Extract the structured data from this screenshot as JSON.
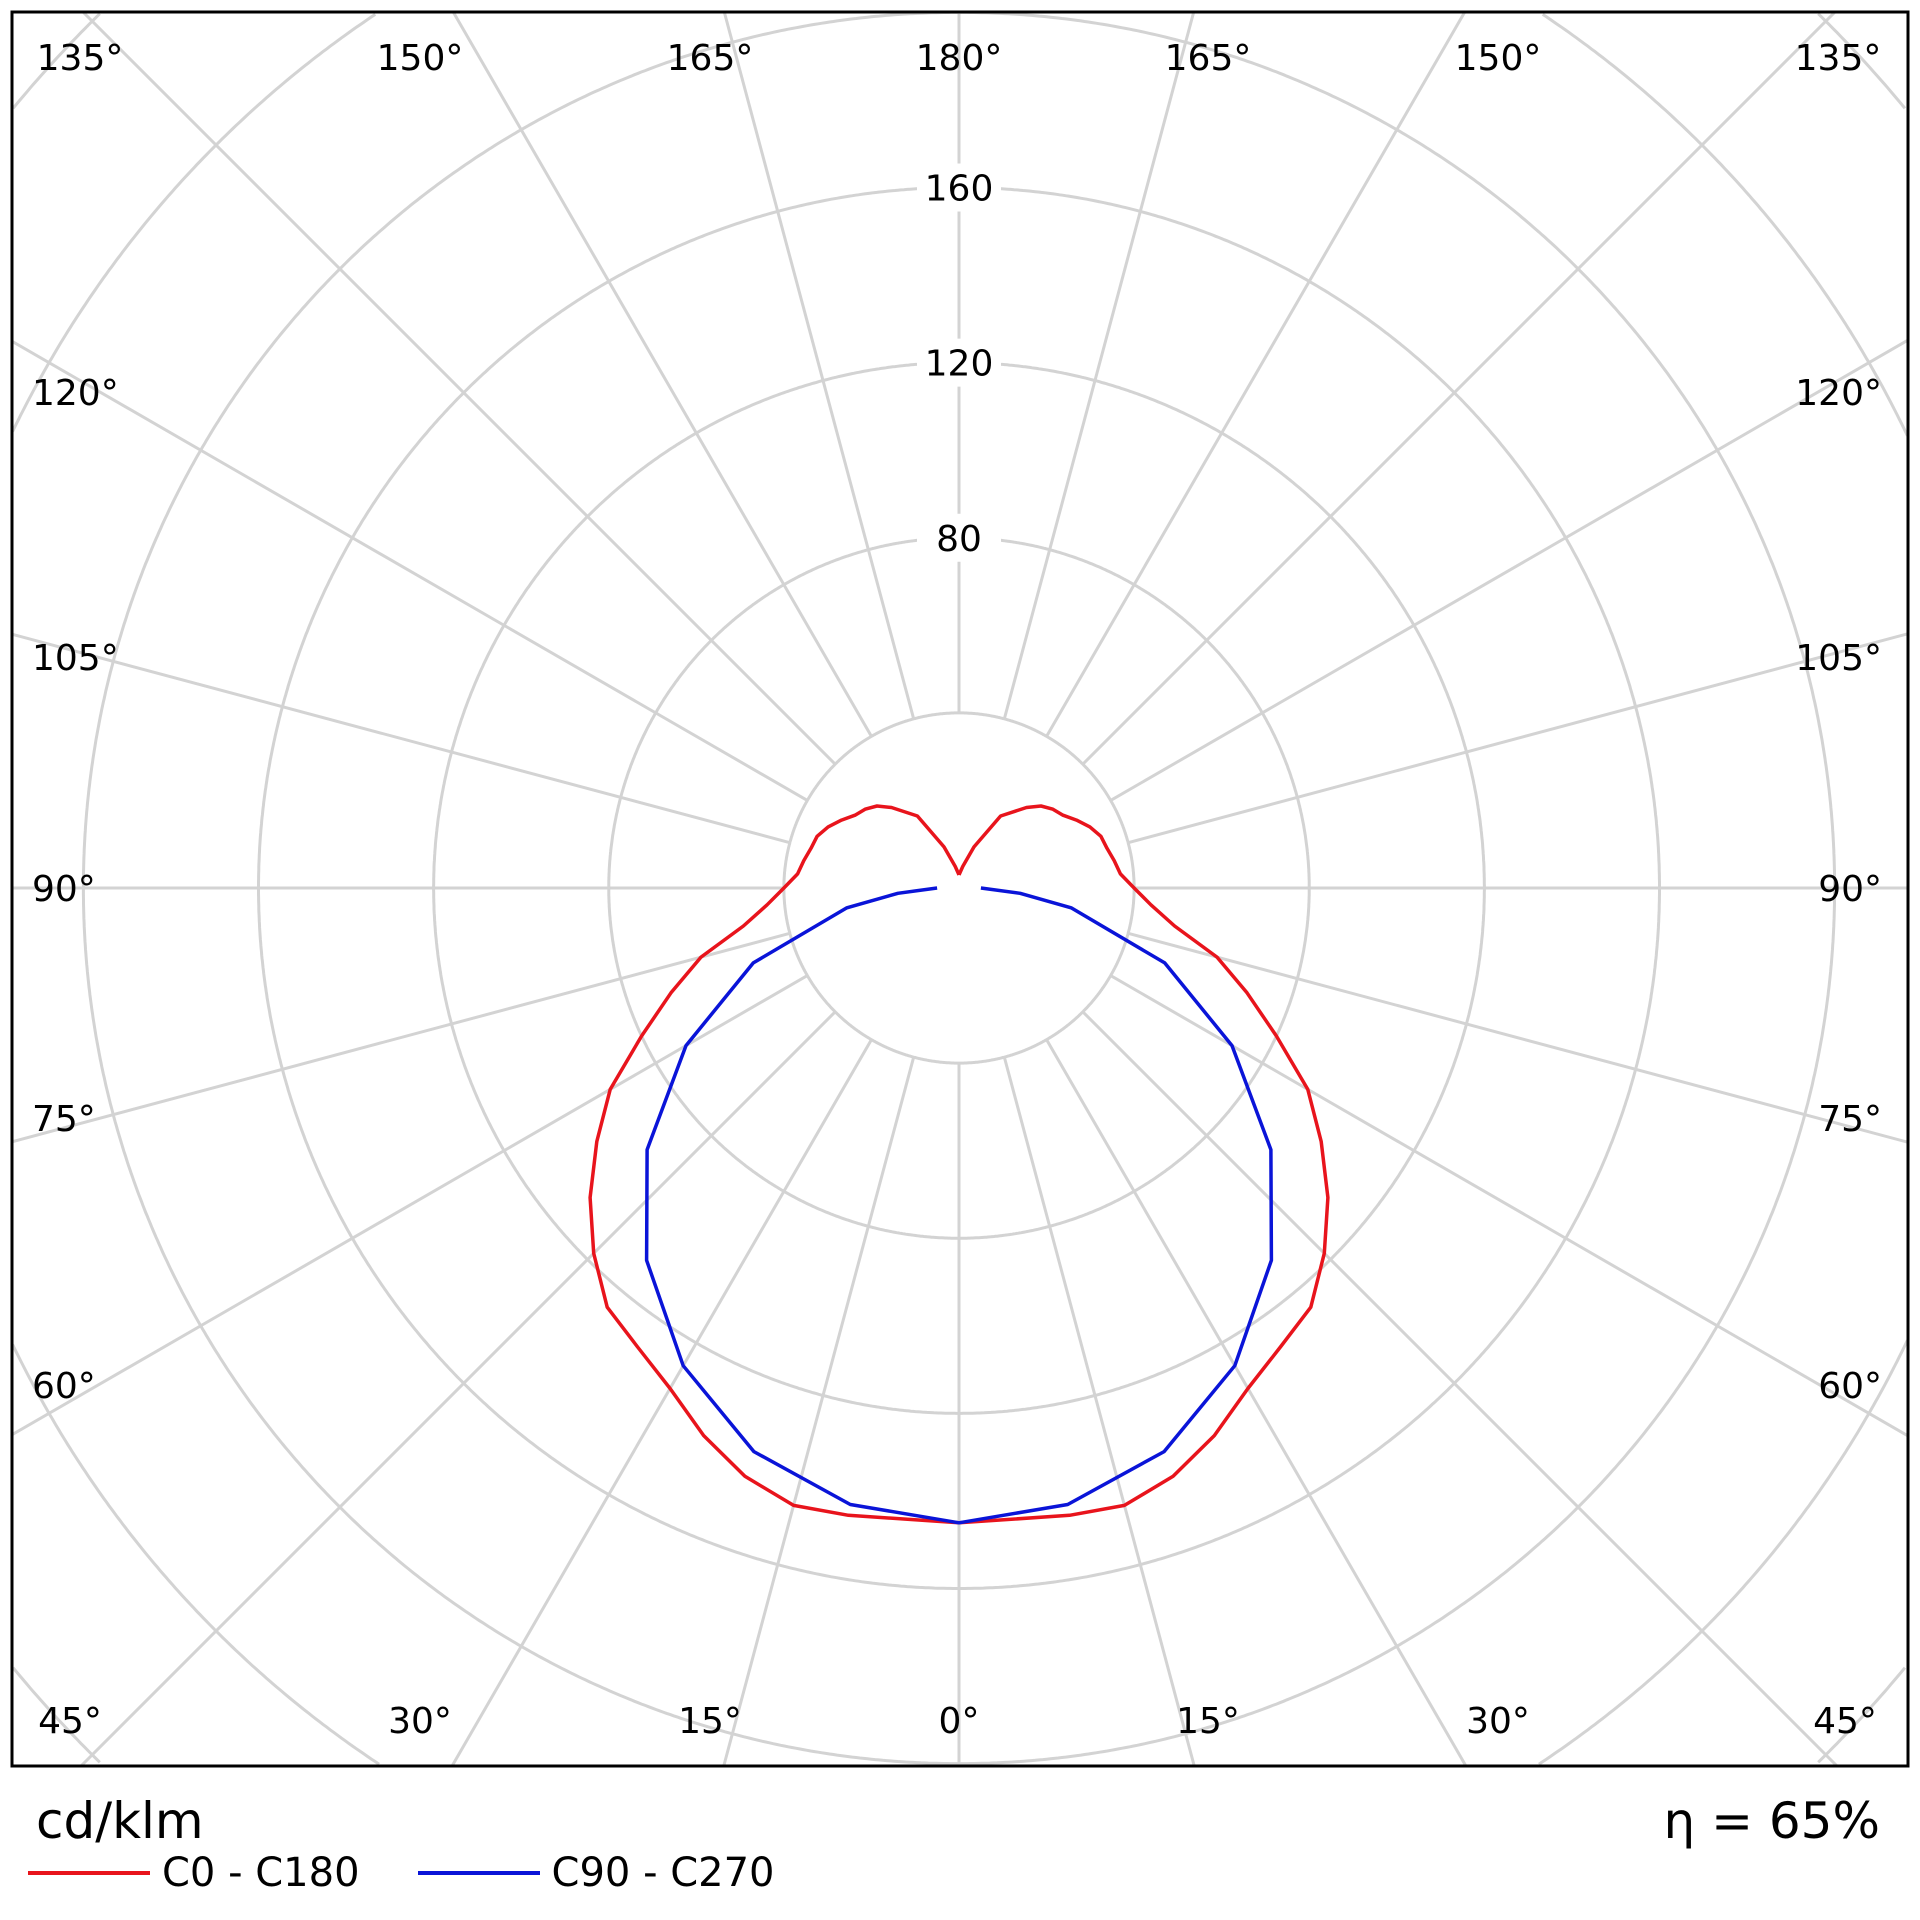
{
  "chart_data": {
    "type": "line",
    "subtype": "polar-luminous-intensity",
    "unit_label": "cd/klm",
    "efficiency_label": "η = 65%",
    "radial_ticks": [
      80,
      120,
      160
    ],
    "radial_rings": [
      40,
      80,
      120,
      160,
      200,
      240,
      280
    ],
    "angle_step": 15,
    "angle_labels_top": [
      "135°",
      "150°",
      "165°",
      "180°",
      "165°",
      "150°",
      "135°"
    ],
    "angle_labels_side": [
      "120°",
      "105°",
      "90°",
      "75°",
      "60°"
    ],
    "angle_labels_bottom": [
      "45°",
      "30°",
      "15°",
      "0°",
      "15°",
      "30°",
      "45°"
    ],
    "grid": true,
    "legend_position": "bottom-left",
    "series": [
      {
        "name": "C0 - C180",
        "color": "#e8141c",
        "gamma": [
          0,
          10,
          15,
          20,
          25,
          30,
          35,
          40,
          45,
          50,
          55,
          60,
          65,
          70,
          75,
          80,
          85,
          90,
          95,
          100,
          105,
          110,
          115,
          120,
          125,
          130,
          135,
          140,
          150,
          160,
          170,
          180
        ],
        "values": [
          145,
          145.5,
          146,
          143,
          138,
          132,
          128,
          125,
          118,
          110,
          101,
          92,
          80,
          70,
          61,
          50,
          44,
          40,
          37,
          36,
          35,
          34.5,
          33,
          31,
          29,
          28,
          26.5,
          24,
          19,
          10,
          5,
          3
        ]
      },
      {
        "name": "C90 - C270",
        "color": "#0a14d8",
        "gamma": [
          0,
          10,
          20,
          30,
          40,
          50,
          60,
          70,
          80,
          85,
          90
        ],
        "values": [
          145,
          143,
          137,
          126,
          111,
          93,
          72,
          50,
          26,
          14,
          5
        ]
      }
    ]
  }
}
